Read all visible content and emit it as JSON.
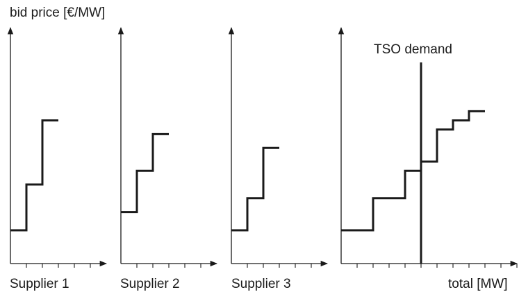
{
  "y_axis_label": "bid price [€/MW]",
  "demand_label": "TSO demand",
  "x_axis_label": "total [MW]",
  "panels": [
    {
      "label": "Supplier 1",
      "ticks": 5,
      "steps": [
        {
          "quantity": 1,
          "price": 1
        },
        {
          "quantity": 1,
          "price": 2.0
        },
        {
          "quantity": 1,
          "price": 3.4
        }
      ]
    },
    {
      "label": "Supplier 2",
      "ticks": 5,
      "steps": [
        {
          "quantity": 1,
          "price": 1.4
        },
        {
          "quantity": 1,
          "price": 2.3
        },
        {
          "quantity": 1,
          "price": 3.1
        }
      ]
    },
    {
      "label": "Supplier 3",
      "ticks": 5,
      "steps": [
        {
          "quantity": 1,
          "price": 1
        },
        {
          "quantity": 1,
          "price": 1.7
        },
        {
          "quantity": 1,
          "price": 2.8
        }
      ]
    },
    {
      "label": "",
      "ticks": 11,
      "demand_quantity": 5,
      "steps": [
        {
          "quantity": 2,
          "price": 1
        },
        {
          "quantity": 2,
          "price": 1.7
        },
        {
          "quantity": 1,
          "price": 2.3
        },
        {
          "quantity": 1,
          "price": 2.5
        },
        {
          "quantity": 1,
          "price": 3.2
        },
        {
          "quantity": 1,
          "price": 3.4
        },
        {
          "quantity": 1,
          "price": 3.6
        }
      ]
    }
  ]
}
